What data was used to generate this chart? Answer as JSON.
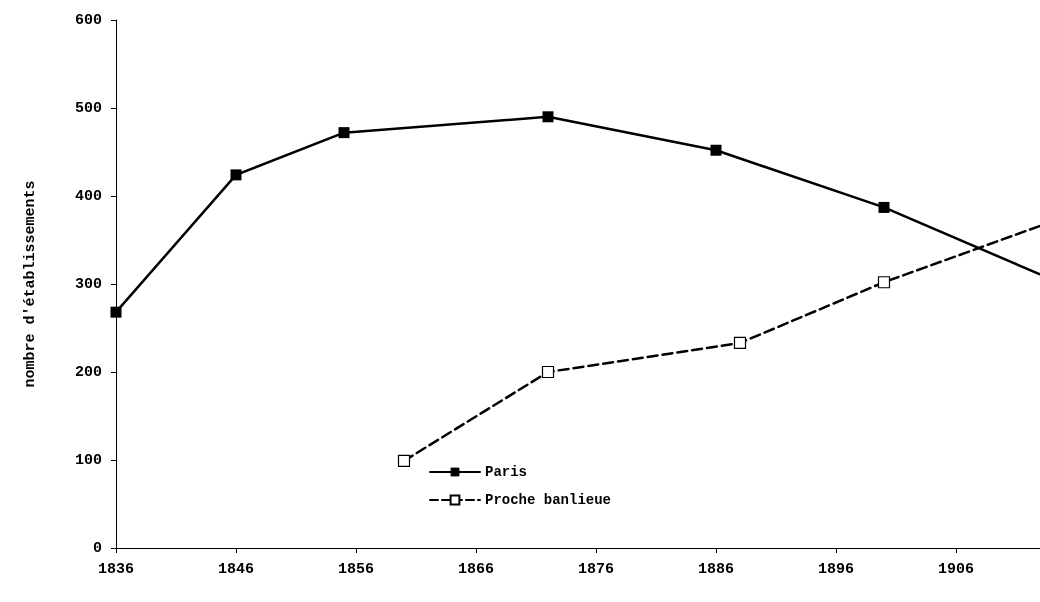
{
  "chart_data": {
    "type": "line",
    "ylabel": "nombre d'établissements",
    "xlim": [
      1836,
      1913
    ],
    "xticks": [
      1836,
      1846,
      1856,
      1866,
      1876,
      1886,
      1896,
      1906
    ],
    "ylim": [
      0,
      600
    ],
    "yticks": [
      0,
      100,
      200,
      300,
      400,
      500,
      600
    ],
    "grid": false,
    "legend": "bottom",
    "marker": "square",
    "series": [
      {
        "name": "Paris",
        "color": "#000000",
        "line_style": "solid",
        "x": [
          1836,
          1846,
          1855,
          1872,
          1886,
          1900,
          1913
        ],
        "values": [
          268,
          424,
          472,
          490,
          452,
          387,
          311
        ]
      },
      {
        "name": "Proche banlieue",
        "color": "#000000",
        "line_style": "dashed",
        "x": [
          1860,
          1872,
          1888,
          1900,
          1913
        ],
        "values": [
          99,
          200,
          233,
          302,
          366
        ]
      }
    ]
  }
}
